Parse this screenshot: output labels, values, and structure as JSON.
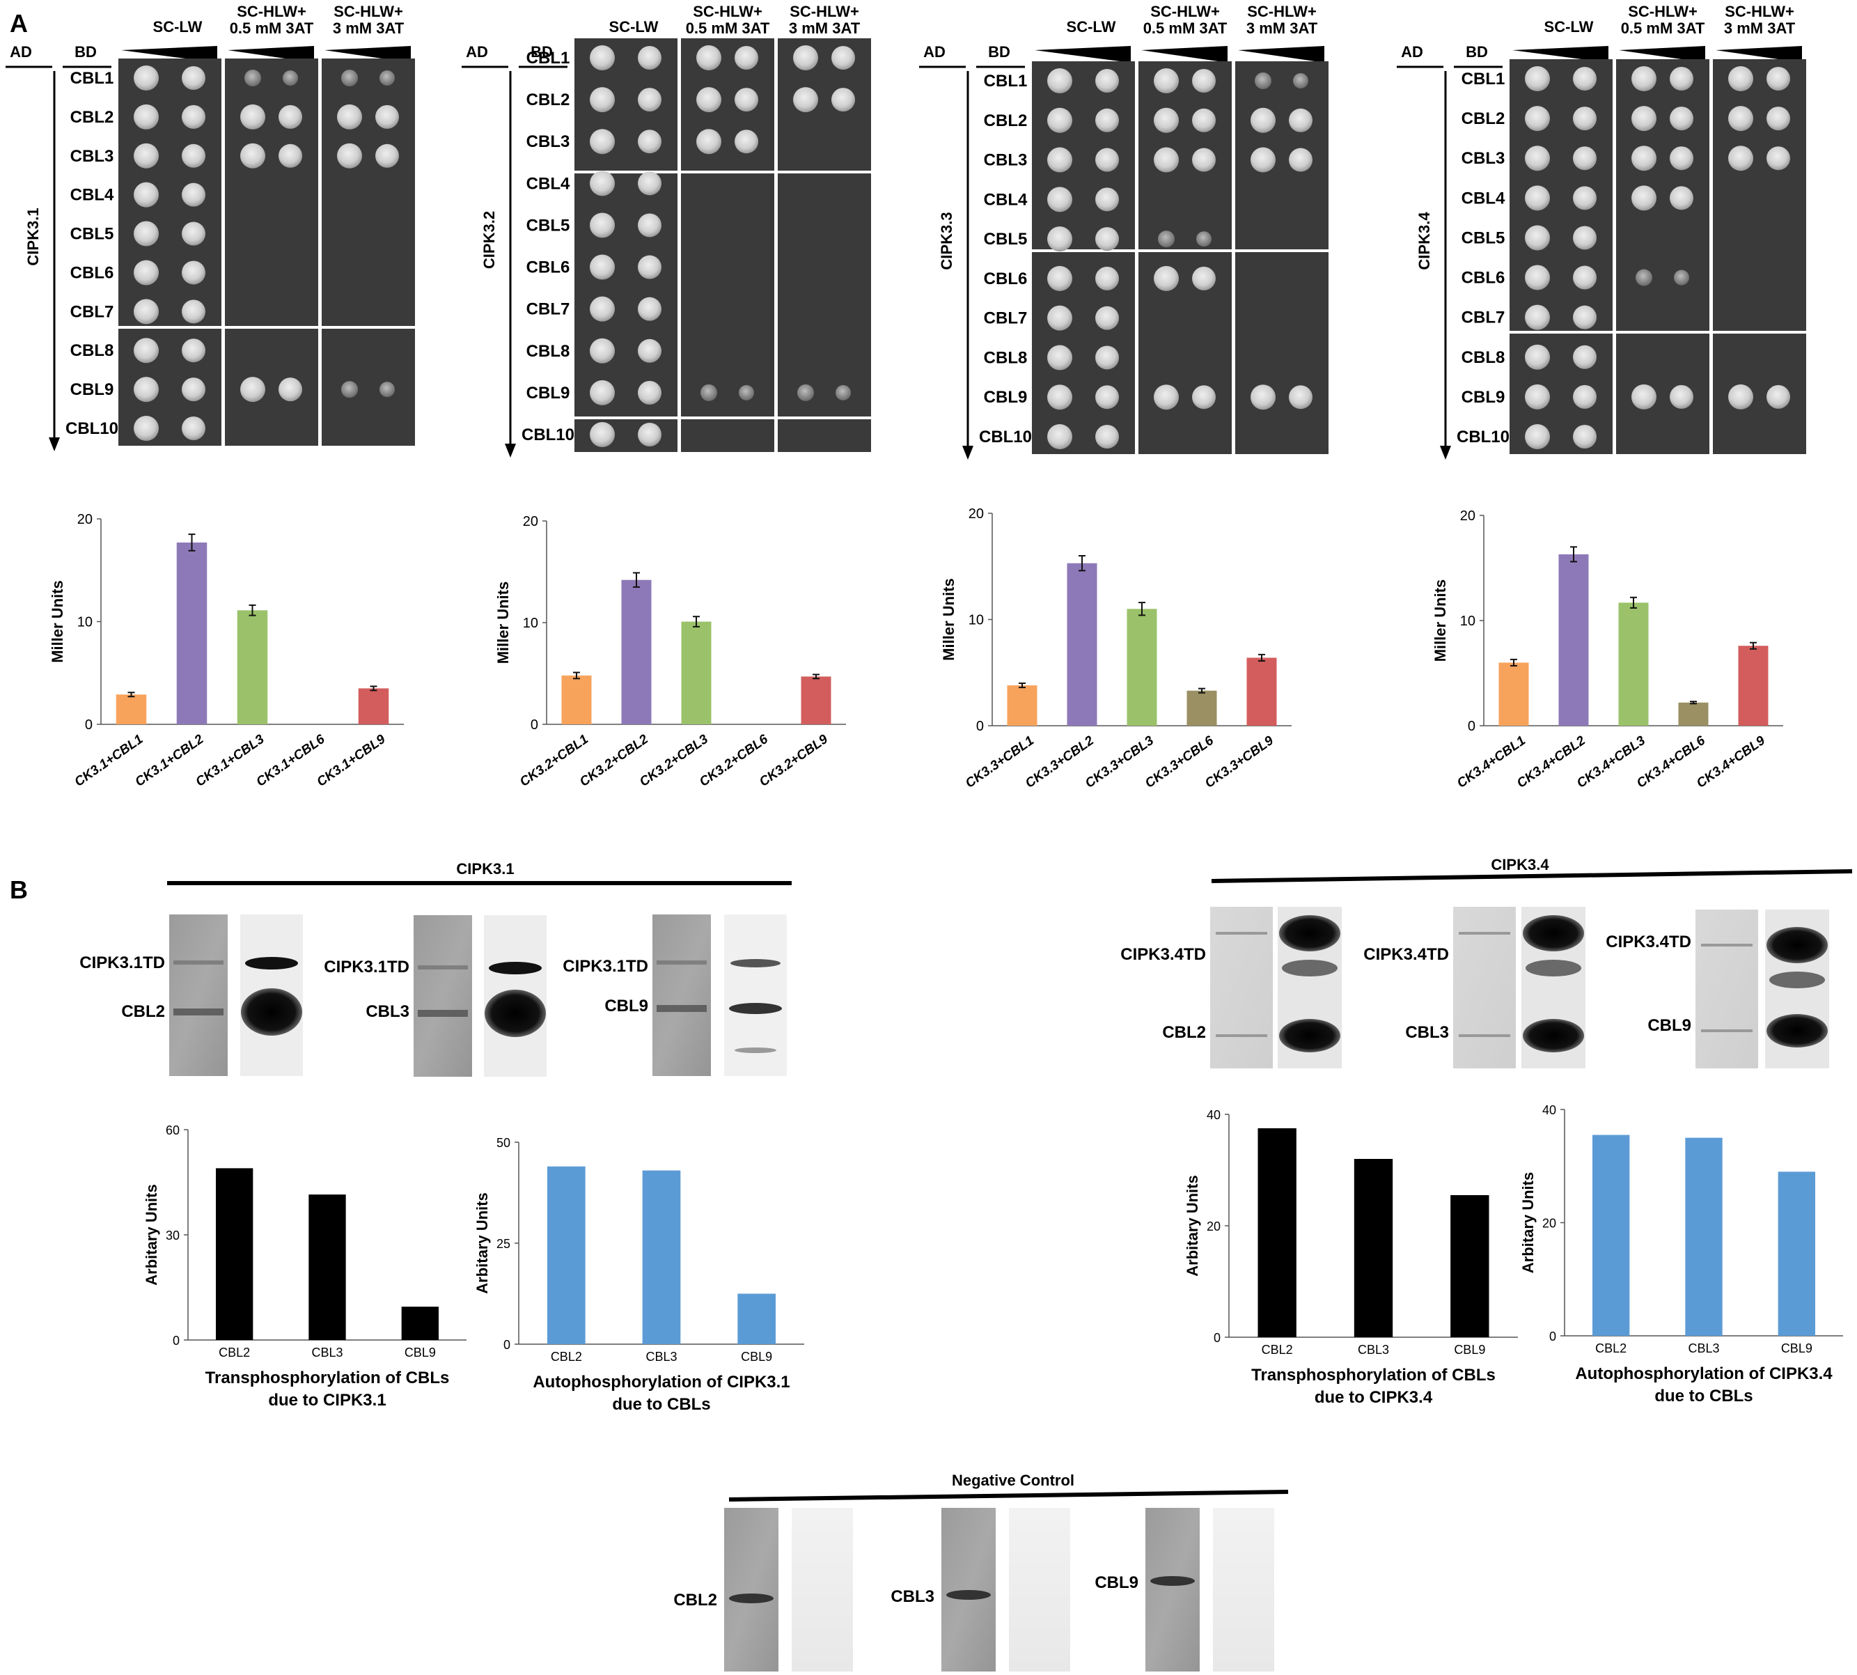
{
  "panel_a": {
    "label": "A",
    "col_ad": "AD",
    "col_bd": "BD",
    "condition_1": "SC-LW",
    "condition_2_line1": "SC-HLW+",
    "condition_2_line2": "0.5 mM 3AT",
    "condition_3_line1": "SC-HLW+",
    "condition_3_line2": "3 mM 3AT",
    "bd_rows": [
      "CBL1",
      "CBL2",
      "CBL3",
      "CBL4",
      "CBL5",
      "CBL6",
      "CBL7",
      "CBL8",
      "CBL9",
      "CBL10"
    ],
    "blocks": [
      {
        "ad": "CIPK3.1"
      },
      {
        "ad": "CIPK3.2"
      },
      {
        "ad": "CIPK3.3"
      },
      {
        "ad": "CIPK3.4"
      }
    ]
  },
  "panel_b": {
    "label": "B",
    "group_1_title": "CIPK3.1",
    "group_2_title": "CIPK3.4",
    "blot_labels_31": [
      {
        "top": "CIPK3.1TD",
        "bottom": "CBL2"
      },
      {
        "top": "CIPK3.1TD",
        "bottom": "CBL3"
      },
      {
        "top": "CIPK3.1TD",
        "bottom": "CBL9"
      }
    ],
    "blot_labels_34": [
      {
        "top": "CIPK3.4TD",
        "bottom": "CBL2"
      },
      {
        "top": "CIPK3.4TD",
        "bottom": "CBL3"
      },
      {
        "top": "CIPK3.4TD",
        "bottom": "CBL9"
      }
    ],
    "negative_control_title": "Negative Control",
    "negative_control_labels": [
      "CBL2",
      "CBL3",
      "CBL9"
    ]
  },
  "chart_data": [
    {
      "type": "bar",
      "ylabel": "Miller Units",
      "ylim": [
        0,
        20
      ],
      "yticks": [
        0,
        10,
        20
      ],
      "categories": [
        "CK3.1+CBL1",
        "CK3.1+CBL2",
        "CK3.1+CBL3",
        "CK3.1+CBL6",
        "CK3.1+CBL9"
      ],
      "values": [
        2.9,
        17.7,
        11.1,
        0,
        3.5
      ],
      "errors": [
        0.2,
        0.8,
        0.5,
        0,
        0.2
      ],
      "colors": [
        "#f7a35c",
        "#8e79b8",
        "#9bc26a",
        "#9a9063",
        "#d35d5d"
      ]
    },
    {
      "type": "bar",
      "ylabel": "Miller Units",
      "ylim": [
        0,
        20
      ],
      "yticks": [
        0,
        10,
        20
      ],
      "categories": [
        "CK3.2+CBL1",
        "CK3.2+CBL2",
        "CK3.2+CBL3",
        "CK3.2+CBL6",
        "CK3.2+CBL9"
      ],
      "values": [
        4.8,
        14.2,
        10.1,
        0,
        4.7
      ],
      "errors": [
        0.3,
        0.7,
        0.5,
        0,
        0.2
      ],
      "colors": [
        "#f7a35c",
        "#8e79b8",
        "#9bc26a",
        "#9a9063",
        "#d35d5d"
      ]
    },
    {
      "type": "bar",
      "ylabel": "Miller Units",
      "ylim": [
        0,
        20
      ],
      "yticks": [
        0,
        10,
        20
      ],
      "categories": [
        "CK3.3+CBL1",
        "CK3.3+CBL2",
        "CK3.3+CBL3",
        "CK3.3+CBL6",
        "CK3.3+CBL9"
      ],
      "values": [
        3.8,
        15.3,
        11.0,
        3.3,
        6.4
      ],
      "errors": [
        0.2,
        0.7,
        0.6,
        0.2,
        0.3
      ],
      "colors": [
        "#f7a35c",
        "#8e79b8",
        "#9bc26a",
        "#9a9063",
        "#d35d5d"
      ]
    },
    {
      "type": "bar",
      "ylabel": "Miller Units",
      "ylim": [
        0,
        20
      ],
      "yticks": [
        0,
        10,
        20
      ],
      "categories": [
        "CK3.4+CBL1",
        "CK3.4+CBL2",
        "CK3.4+CBL3",
        "CK3.4+CBL6",
        "CK3.4+CBL9"
      ],
      "values": [
        6.0,
        16.3,
        11.7,
        2.2,
        7.6
      ],
      "errors": [
        0.3,
        0.7,
        0.5,
        0.1,
        0.3
      ],
      "colors": [
        "#f7a35c",
        "#8e79b8",
        "#9bc26a",
        "#9a9063",
        "#d35d5d"
      ]
    },
    {
      "type": "bar",
      "ylabel": "Arbitary Units",
      "caption_line1": "Transphosphorylation of CBLs",
      "caption_line2": "due to CIPK3.1",
      "ylim": [
        0,
        60
      ],
      "yticks": [
        0,
        30,
        60
      ],
      "categories": [
        "CBL2",
        "CBL3",
        "CBL9"
      ],
      "values": [
        49,
        41.5,
        9.5
      ],
      "color": "#000000"
    },
    {
      "type": "bar",
      "ylabel": "Arbitary Units",
      "caption_line1": "Autophosphorylation of CIPK3.1",
      "caption_line2": "due to CBLs",
      "ylim": [
        0,
        50
      ],
      "yticks": [
        0,
        25,
        50
      ],
      "categories": [
        "CBL2",
        "CBL3",
        "CBL9"
      ],
      "values": [
        44,
        43,
        12.5
      ],
      "color": "#5b9bd5"
    },
    {
      "type": "bar",
      "ylabel": "Arbitary Units",
      "caption_line1": "Transphosphorylation of CBLs",
      "caption_line2": "due to CIPK3.4",
      "ylim": [
        0,
        40
      ],
      "yticks": [
        0,
        20,
        40
      ],
      "categories": [
        "CBL2",
        "CBL3",
        "CBL9"
      ],
      "values": [
        37.5,
        32,
        25.5
      ],
      "color": "#000000"
    },
    {
      "type": "bar",
      "ylabel": "Arbitary Units",
      "caption_line1": "Autophosphorylation of CIPK3.4",
      "caption_line2": "due to CBLs",
      "ylim": [
        0,
        40
      ],
      "yticks": [
        0,
        20,
        40
      ],
      "categories": [
        "CBL2",
        "CBL3",
        "CBL9"
      ],
      "values": [
        35.5,
        35,
        29
      ],
      "color": "#5b9bd5"
    }
  ]
}
